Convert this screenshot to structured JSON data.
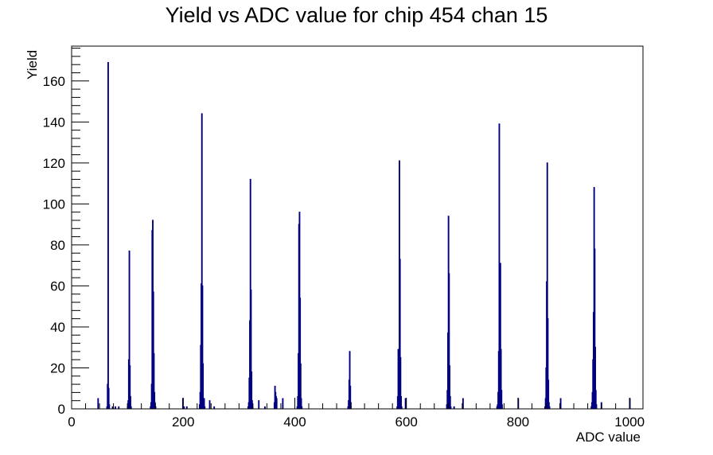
{
  "colors": {
    "series": "#000080",
    "axis": "#000000",
    "background": "#ffffff"
  },
  "chart_data": {
    "type": "bar",
    "title": "Yield vs ADC value for chip 454 chan 15",
    "xlabel": "ADC value",
    "ylabel": "Yield",
    "xlim": [
      0,
      1024
    ],
    "ylim": [
      0,
      177
    ],
    "xticks": [
      0,
      200,
      400,
      600,
      800,
      1000
    ],
    "yticks": [
      0,
      20,
      40,
      60,
      80,
      100,
      120,
      140,
      160
    ],
    "xtick_labels": [
      "0",
      "200",
      "400",
      "600",
      "800",
      "1000"
    ],
    "ytick_labels": [
      "0",
      "20",
      "40",
      "60",
      "80",
      "100",
      "120",
      "140",
      "160"
    ],
    "grid": false,
    "legend": "none",
    "bin_width": 1,
    "series": [
      {
        "bins": [
          [
            47,
            5
          ],
          [
            63,
            1
          ],
          [
            64,
            12
          ],
          [
            65,
            169
          ],
          [
            66,
            10
          ],
          [
            67,
            2
          ],
          [
            73,
            1
          ],
          [
            78,
            1
          ],
          [
            84,
            1
          ],
          [
            100,
            1
          ],
          [
            101,
            4
          ],
          [
            102,
            24
          ],
          [
            103,
            77
          ],
          [
            104,
            21
          ],
          [
            105,
            6
          ],
          [
            106,
            1
          ],
          [
            141,
            1
          ],
          [
            142,
            3
          ],
          [
            143,
            12
          ],
          [
            144,
            87
          ],
          [
            145,
            92
          ],
          [
            146,
            57
          ],
          [
            147,
            27
          ],
          [
            148,
            8
          ],
          [
            149,
            3
          ],
          [
            150,
            1
          ],
          [
            199,
            5
          ],
          [
            201,
            1
          ],
          [
            206,
            1
          ],
          [
            229,
            2
          ],
          [
            230,
            8
          ],
          [
            231,
            31
          ],
          [
            232,
            61
          ],
          [
            233,
            144
          ],
          [
            234,
            60
          ],
          [
            235,
            22
          ],
          [
            236,
            5
          ],
          [
            237,
            5
          ],
          [
            238,
            1
          ],
          [
            247,
            4
          ],
          [
            255,
            1
          ],
          [
            316,
            1
          ],
          [
            317,
            3
          ],
          [
            318,
            15
          ],
          [
            319,
            43
          ],
          [
            320,
            112
          ],
          [
            321,
            58
          ],
          [
            322,
            18
          ],
          [
            323,
            4
          ],
          [
            324,
            1
          ],
          [
            335,
            4
          ],
          [
            346,
            1
          ],
          [
            363,
            3
          ],
          [
            364,
            11
          ],
          [
            365,
            8
          ],
          [
            366,
            6
          ],
          [
            367,
            5
          ],
          [
            378,
            5
          ],
          [
            404,
            1
          ],
          [
            405,
            6
          ],
          [
            406,
            27
          ],
          [
            407,
            90
          ],
          [
            408,
            96
          ],
          [
            409,
            54
          ],
          [
            410,
            22
          ],
          [
            411,
            5
          ],
          [
            412,
            1
          ],
          [
            495,
            1
          ],
          [
            496,
            4
          ],
          [
            497,
            14
          ],
          [
            498,
            28
          ],
          [
            499,
            11
          ],
          [
            500,
            3
          ],
          [
            583,
            1
          ],
          [
            584,
            6
          ],
          [
            585,
            29
          ],
          [
            586,
            19
          ],
          [
            587,
            121
          ],
          [
            588,
            73
          ],
          [
            589,
            25
          ],
          [
            590,
            6
          ],
          [
            591,
            1
          ],
          [
            598,
            5
          ],
          [
            672,
            2
          ],
          [
            673,
            9
          ],
          [
            674,
            37
          ],
          [
            675,
            94
          ],
          [
            676,
            66
          ],
          [
            677,
            21
          ],
          [
            678,
            6
          ],
          [
            679,
            1
          ],
          [
            685,
            1
          ],
          [
            701,
            5
          ],
          [
            762,
            1
          ],
          [
            763,
            2
          ],
          [
            764,
            8
          ],
          [
            765,
            28
          ],
          [
            766,
            139
          ],
          [
            767,
            54
          ],
          [
            768,
            71
          ],
          [
            769,
            29
          ],
          [
            770,
            9
          ],
          [
            771,
            2
          ],
          [
            800,
            5
          ],
          [
            848,
            1
          ],
          [
            849,
            5
          ],
          [
            850,
            20
          ],
          [
            851,
            62
          ],
          [
            852,
            120
          ],
          [
            853,
            44
          ],
          [
            854,
            14
          ],
          [
            855,
            3
          ],
          [
            856,
            1
          ],
          [
            876,
            5
          ],
          [
            931,
            1
          ],
          [
            932,
            3
          ],
          [
            933,
            8
          ],
          [
            934,
            24
          ],
          [
            935,
            47
          ],
          [
            936,
            108
          ],
          [
            937,
            78
          ],
          [
            938,
            30
          ],
          [
            939,
            9
          ],
          [
            940,
            2
          ],
          [
            949,
            3
          ],
          [
            1000,
            5
          ]
        ]
      }
    ]
  }
}
